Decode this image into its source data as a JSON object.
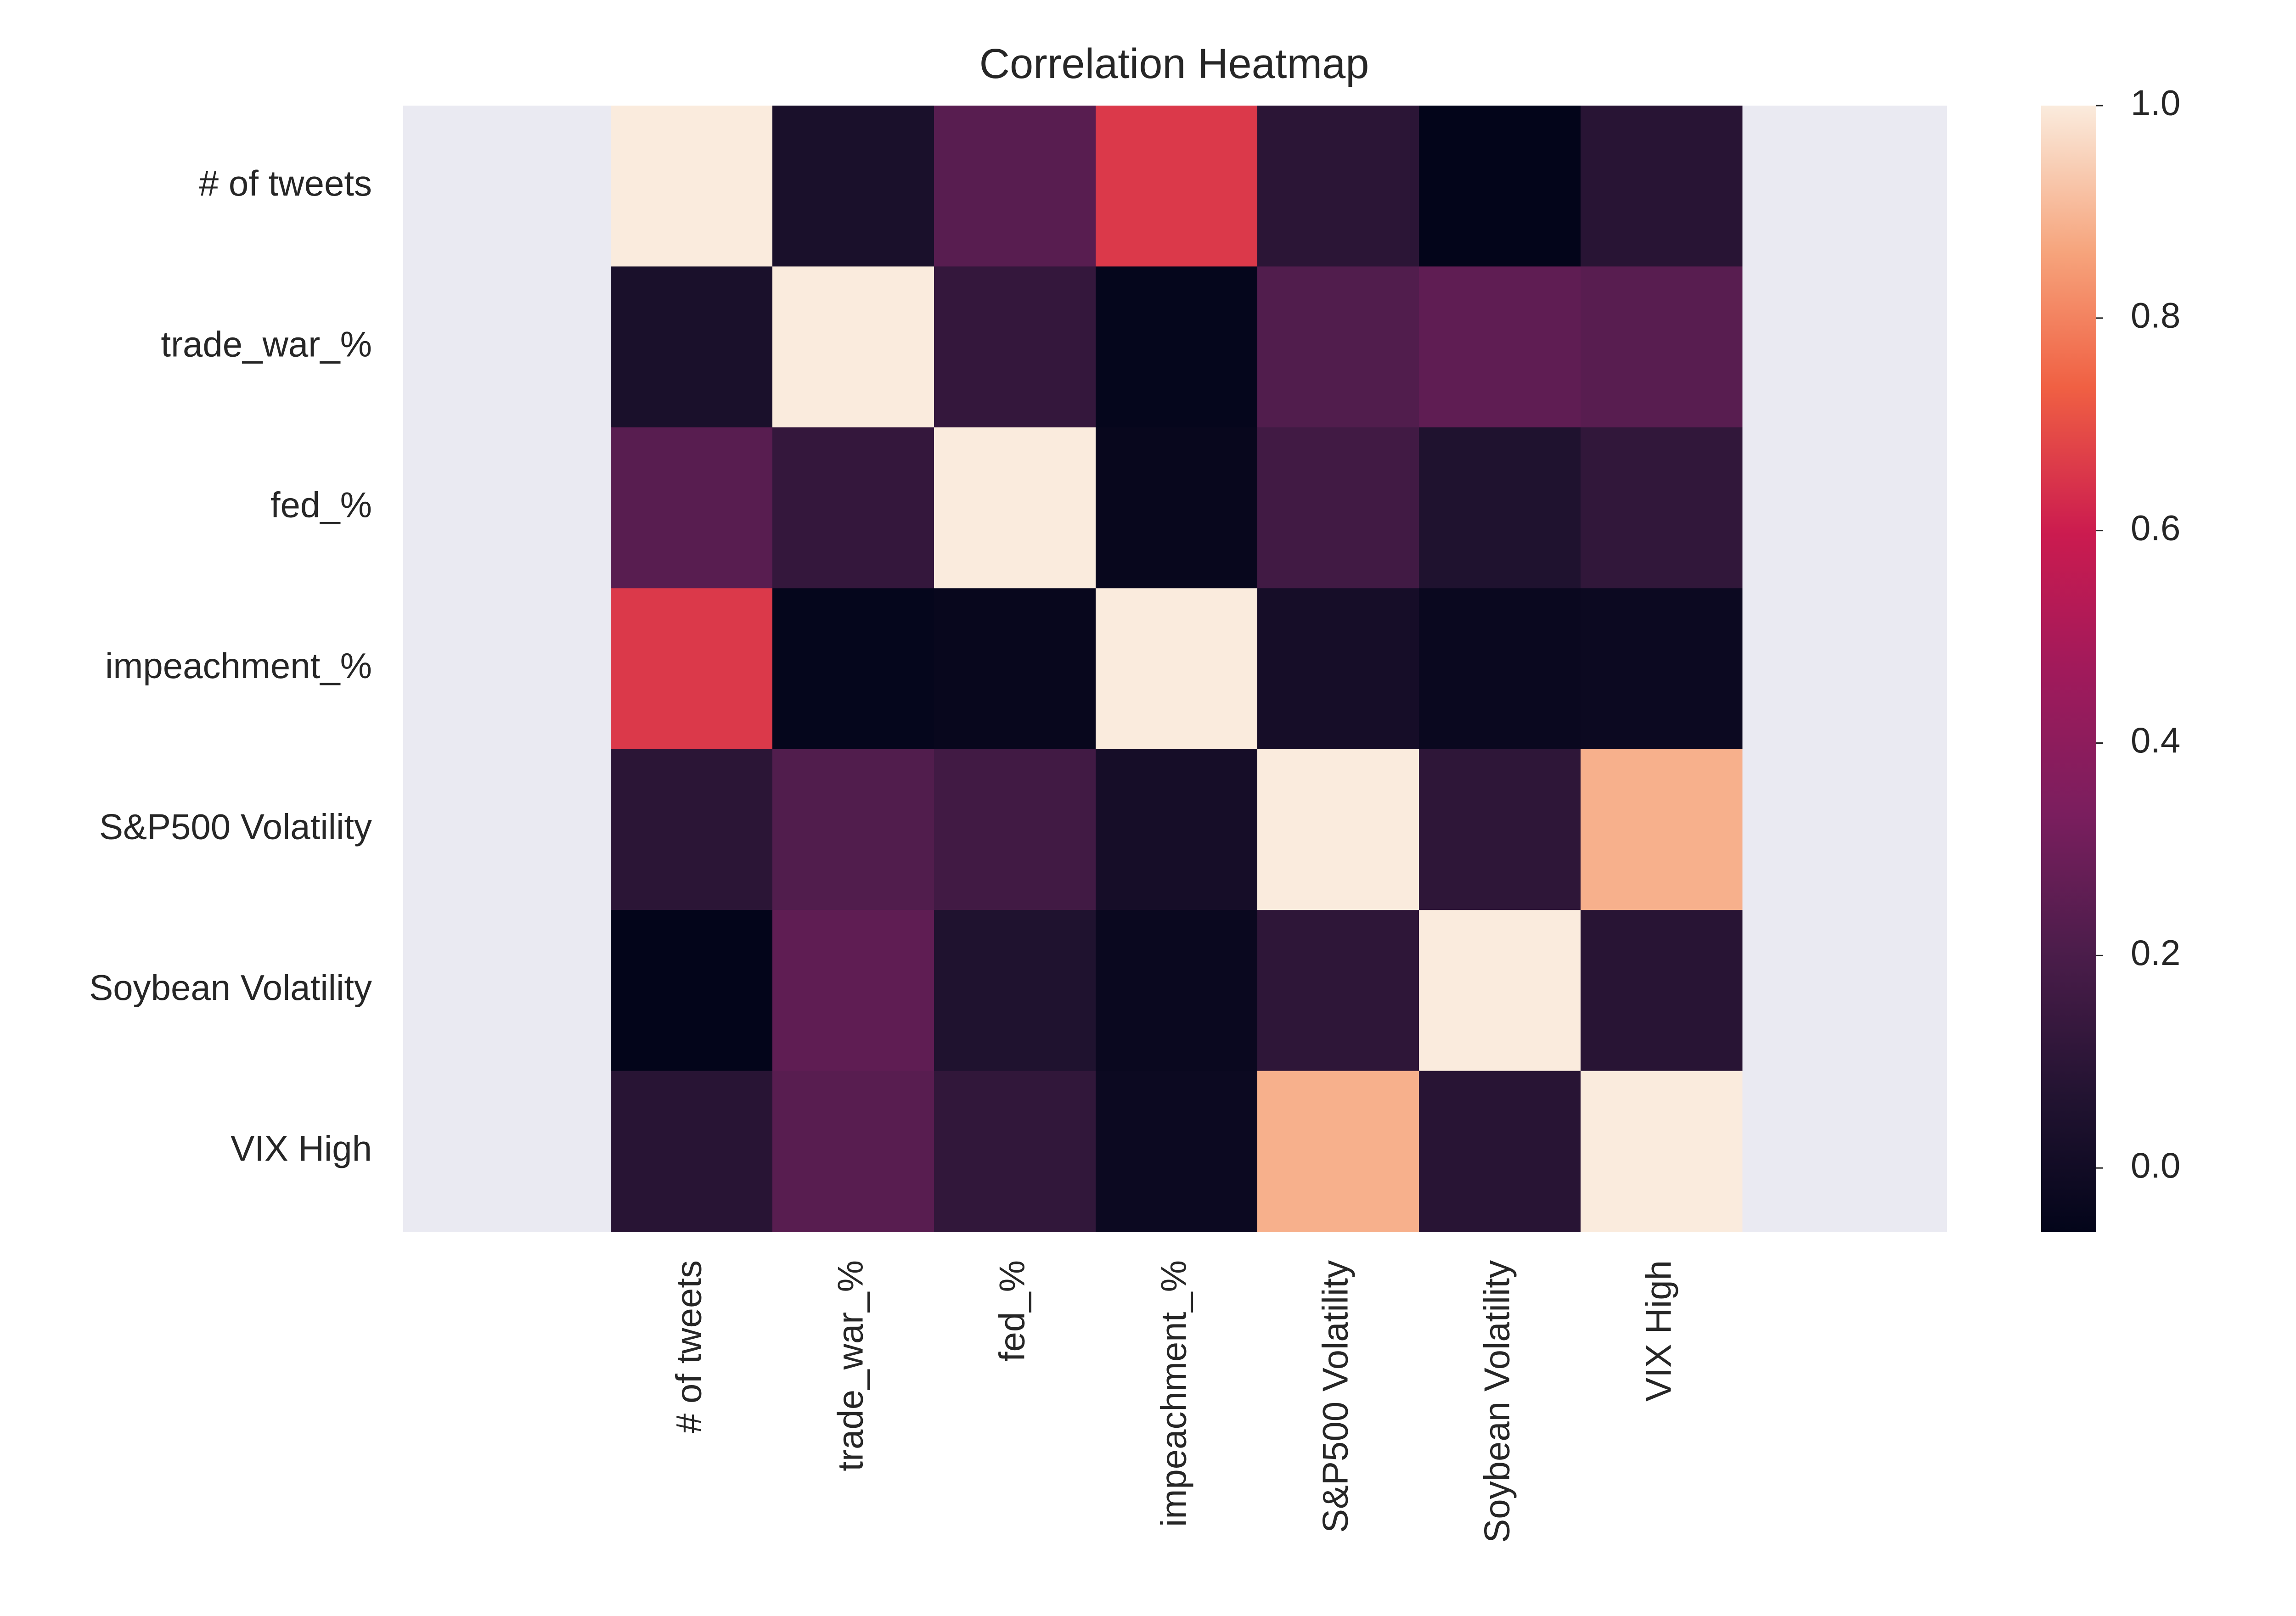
{
  "chart_data": {
    "type": "heatmap",
    "title": "Correlation Heatmap",
    "row_labels": [
      "# of tweets",
      "trade_war_%",
      "fed_%",
      "impeachment_%",
      "S&P500 Volatility",
      "Soybean Volatility",
      "VIX High"
    ],
    "col_labels": [
      "# of tweets",
      "trade_war_%",
      "fed_%",
      "impeachment_%",
      "S&P500 Volatility",
      "Soybean Volatility",
      "VIX High"
    ],
    "matrix": [
      [
        1.0,
        0.04,
        0.24,
        0.66,
        0.1,
        -0.06,
        0.09
      ],
      [
        0.04,
        1.0,
        0.13,
        -0.05,
        0.22,
        0.26,
        0.24
      ],
      [
        0.24,
        0.13,
        1.0,
        -0.04,
        0.17,
        0.06,
        0.12
      ],
      [
        0.66,
        -0.05,
        -0.04,
        1.0,
        0.02,
        -0.03,
        -0.02
      ],
      [
        0.1,
        0.22,
        0.17,
        0.02,
        1.0,
        0.11,
        0.89
      ],
      [
        -0.06,
        0.26,
        0.06,
        -0.03,
        0.11,
        1.0,
        0.09
      ],
      [
        0.09,
        0.24,
        0.12,
        -0.02,
        0.89,
        0.09,
        1.0
      ]
    ],
    "colorbar": {
      "vmin": -0.06,
      "vmax": 1.0,
      "ticks": [
        0.0,
        0.2,
        0.4,
        0.6,
        0.8,
        1.0
      ],
      "tick_labels": [
        "0.0",
        "0.2",
        "0.4",
        "0.6",
        "0.8",
        "1.0"
      ],
      "colormap": "rocket"
    },
    "background_color": "#eaeaf2",
    "grid": false
  }
}
